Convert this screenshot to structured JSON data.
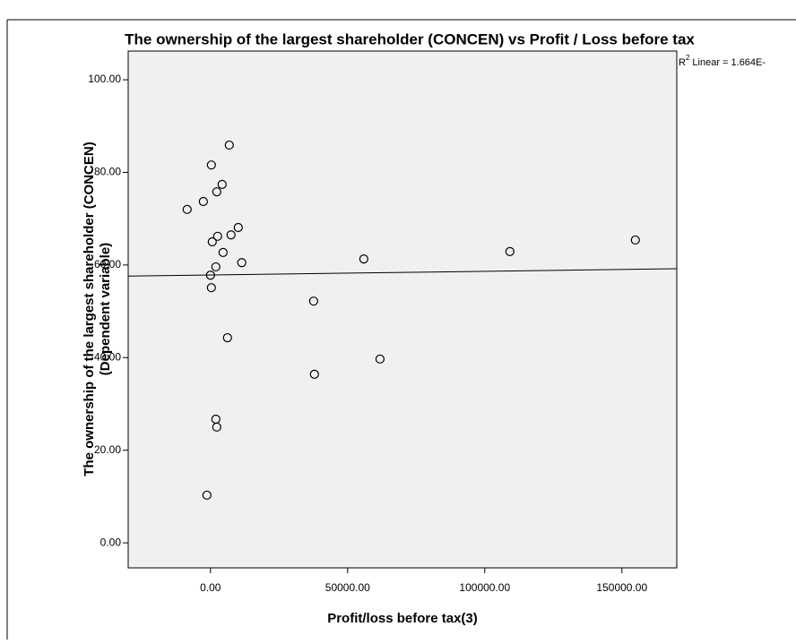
{
  "chart_data": {
    "type": "scatter",
    "title": "The ownership of the largest shareholder (CONCEN) vs Profit / Loss before tax",
    "x_label": "Profit/loss before tax(3)",
    "y_label": [
      "The ownership of the largest shareholder (CONCEN)",
      "(Dependent variable)"
    ],
    "annotation": {
      "base": "R",
      "sup": "2",
      "rest": "Linear = 1.664E-"
    },
    "xlim": [
      -30000,
      170000
    ],
    "ylim": [
      -5.4,
      106.2
    ],
    "xticks": [
      {
        "value": 0,
        "label": "0.00"
      },
      {
        "value": 50000,
        "label": "50000.00"
      },
      {
        "value": 100000,
        "label": "100000.00"
      },
      {
        "value": 150000,
        "label": "150000.00"
      }
    ],
    "yticks": [
      {
        "value": 0,
        "label": "0.00"
      },
      {
        "value": 20,
        "label": "20.00"
      },
      {
        "value": 40,
        "label": "40.00"
      },
      {
        "value": 60,
        "label": "60.00"
      },
      {
        "value": 80,
        "label": "80.00"
      },
      {
        "value": 100,
        "label": "100.00"
      }
    ],
    "color": "#000000",
    "background": "#f0f0f0",
    "x": [
      6860,
      330,
      4250,
      2290,
      -8500,
      -2600,
      10130,
      7500,
      2600,
      650,
      4600,
      11400,
      1960,
      0,
      330,
      37600,
      55900,
      109150,
      154900,
      6200,
      61800,
      37900,
      1960,
      2290,
      -1300
    ],
    "values": [
      85.9,
      81.6,
      77.4,
      75.8,
      72.0,
      73.7,
      68.1,
      66.5,
      66.2,
      65.0,
      62.7,
      60.5,
      59.6,
      57.8,
      55.1,
      52.2,
      61.3,
      62.9,
      65.4,
      44.3,
      39.7,
      36.4,
      26.7,
      25.0,
      10.3
    ],
    "fit_line": {
      "x": [
        -30000,
        170000
      ],
      "values": [
        57.6,
        59.2
      ]
    }
  }
}
